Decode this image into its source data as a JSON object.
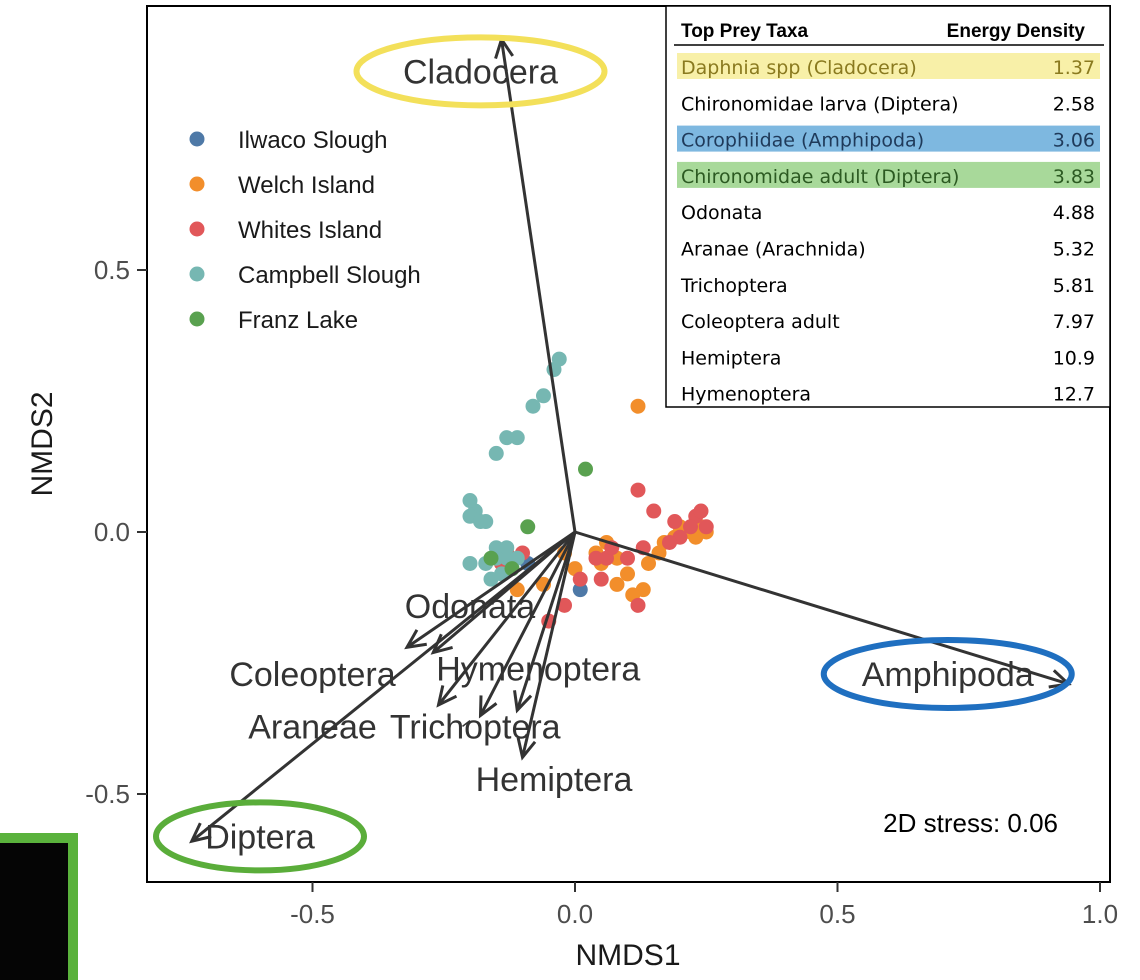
{
  "chart_data": {
    "type": "scatter",
    "xlabel": "NMDS1",
    "ylabel": "NMDS2",
    "xlim": [
      -0.8,
      1.0
    ],
    "ylim": [
      -0.66,
      0.97
    ],
    "x_ticks": [
      {
        "value": -0.5,
        "label": "-0.5"
      },
      {
        "value": 0.0,
        "label": "0.0"
      },
      {
        "value": 0.5,
        "label": "0.5"
      },
      {
        "value": 1.0,
        "label": "1.0"
      }
    ],
    "y_ticks": [
      {
        "value": -0.5,
        "label": "-0.5"
      },
      {
        "value": 0.0,
        "label": "0.0"
      },
      {
        "value": 0.5,
        "label": "0.5"
      }
    ],
    "grid": false,
    "legend_position": "top-left",
    "stress_text": "2D stress: 0.06",
    "series": [
      {
        "name": "Ilwaco Slough",
        "color": "#4e79a7",
        "points": [
          [
            0.01,
            -0.11
          ],
          [
            -0.09,
            -0.06
          ]
        ]
      },
      {
        "name": "Welch Island",
        "color": "#f28e2b",
        "points": [
          [
            0.12,
            0.24
          ],
          [
            0.06,
            -0.02
          ],
          [
            0.04,
            -0.04
          ],
          [
            0.08,
            -0.05
          ],
          [
            0.1,
            -0.08
          ],
          [
            0.14,
            -0.06
          ],
          [
            0.16,
            -0.04
          ],
          [
            0.19,
            -0.01
          ],
          [
            0.22,
            0.0
          ],
          [
            0.24,
            0.01
          ],
          [
            0.25,
            0.0
          ],
          [
            0.13,
            -0.11
          ],
          [
            0.11,
            -0.12
          ],
          [
            0.08,
            -0.1
          ],
          [
            0.05,
            -0.06
          ],
          [
            0.0,
            -0.07
          ],
          [
            -0.06,
            -0.1
          ],
          [
            -0.11,
            -0.11
          ],
          [
            -0.02,
            -0.04
          ],
          [
            0.2,
            0.01
          ],
          [
            0.23,
            -0.01
          ],
          [
            0.17,
            -0.02
          ]
        ]
      },
      {
        "name": "Whites Island",
        "color": "#e15759",
        "points": [
          [
            0.12,
            0.08
          ],
          [
            0.15,
            0.04
          ],
          [
            0.19,
            0.02
          ],
          [
            0.23,
            0.03
          ],
          [
            0.24,
            0.04
          ],
          [
            0.25,
            0.01
          ],
          [
            0.22,
            0.01
          ],
          [
            0.2,
            -0.01
          ],
          [
            0.18,
            -0.02
          ],
          [
            0.13,
            -0.03
          ],
          [
            0.1,
            -0.05
          ],
          [
            0.06,
            -0.05
          ],
          [
            0.05,
            -0.09
          ],
          [
            0.01,
            -0.09
          ],
          [
            -0.02,
            -0.14
          ],
          [
            -0.05,
            -0.17
          ],
          [
            -0.1,
            -0.04
          ],
          [
            -0.13,
            -0.04
          ],
          [
            -0.14,
            -0.06
          ],
          [
            0.07,
            -0.03
          ],
          [
            0.12,
            -0.14
          ],
          [
            0.04,
            -0.05
          ]
        ]
      },
      {
        "name": "Campbell Slough",
        "color": "#76b7b2",
        "points": [
          [
            -0.03,
            0.33
          ],
          [
            -0.04,
            0.31
          ],
          [
            -0.06,
            0.26
          ],
          [
            -0.08,
            0.24
          ],
          [
            -0.11,
            0.18
          ],
          [
            -0.13,
            0.18
          ],
          [
            -0.15,
            0.15
          ],
          [
            -0.19,
            0.04
          ],
          [
            -0.2,
            0.06
          ],
          [
            -0.2,
            0.03
          ],
          [
            -0.17,
            0.02
          ],
          [
            -0.18,
            0.02
          ],
          [
            -0.15,
            -0.03
          ],
          [
            -0.13,
            -0.05
          ],
          [
            -0.17,
            -0.06
          ],
          [
            -0.2,
            -0.06
          ],
          [
            -0.16,
            -0.09
          ],
          [
            -0.12,
            -0.07
          ],
          [
            -0.13,
            -0.03
          ],
          [
            -0.15,
            -0.05
          ],
          [
            -0.14,
            -0.08
          ],
          [
            -0.11,
            -0.05
          ]
        ]
      },
      {
        "name": "Franz Lake",
        "color": "#59a14f",
        "points": [
          [
            0.02,
            0.12
          ],
          [
            -0.09,
            0.01
          ],
          [
            -0.16,
            -0.05
          ],
          [
            -0.12,
            -0.07
          ]
        ]
      }
    ],
    "vectors": [
      {
        "label": "Cladocera",
        "x": -0.14,
        "y": 0.94,
        "label_x": -0.18,
        "label_y": 0.86,
        "circle_color": "#f3e05a"
      },
      {
        "label": "Amphipoda",
        "x": 0.94,
        "y": -0.29,
        "label_x": 0.71,
        "label_y": -0.29,
        "circle_color": "#1f6fc0"
      },
      {
        "label": "Diptera",
        "x": -0.73,
        "y": -0.59,
        "label_x": -0.6,
        "label_y": -0.6,
        "circle_color": "#5aad3a"
      },
      {
        "label": "Odonata",
        "x": -0.27,
        "y": -0.23,
        "label_x": -0.2,
        "label_y": -0.16,
        "circle_color": ""
      },
      {
        "label": "Coleoptera",
        "x": -0.32,
        "y": -0.22,
        "label_x": -0.5,
        "label_y": -0.29,
        "circle_color": ""
      },
      {
        "label": "Hymenoptera",
        "x": -0.11,
        "y": -0.34,
        "label_x": -0.07,
        "label_y": -0.28,
        "circle_color": ""
      },
      {
        "label": "Trichoptera",
        "x": -0.18,
        "y": -0.35,
        "label_x": -0.19,
        "label_y": -0.39,
        "circle_color": ""
      },
      {
        "label": "Araneae",
        "x": -0.26,
        "y": -0.33,
        "label_x": -0.5,
        "label_y": -0.39,
        "circle_color": ""
      },
      {
        "label": "Hemiptera",
        "x": -0.1,
        "y": -0.43,
        "label_x": -0.04,
        "label_y": -0.49,
        "circle_color": ""
      }
    ],
    "energy_table": {
      "headers": [
        "Top Prey Taxa",
        "Energy Density"
      ],
      "rows": [
        {
          "taxon": "Daphnia spp (Cladocera)",
          "value": "1.37",
          "highlight": "#f8f0a8",
          "text_color": "#8a7a1f"
        },
        {
          "taxon": "Chironomidae larva (Diptera)",
          "value": "2.58",
          "highlight": "",
          "text_color": "#000000"
        },
        {
          "taxon": "Corophiidae (Amphipoda)",
          "value": "3.06",
          "highlight": "#7eb8e0",
          "text_color": "#1f3a5a"
        },
        {
          "taxon": "Chironomidae adult (Diptera)",
          "value": "3.83",
          "highlight": "#a8d99a",
          "text_color": "#2c5a22"
        },
        {
          "taxon": "Odonata",
          "value": "4.88",
          "highlight": "",
          "text_color": "#000000"
        },
        {
          "taxon": "Aranae (Arachnida)",
          "value": "5.32",
          "highlight": "",
          "text_color": "#000000"
        },
        {
          "taxon": "Trichoptera",
          "value": "5.81",
          "highlight": "",
          "text_color": "#000000"
        },
        {
          "taxon": "Coleoptera adult",
          "value": "7.97",
          "highlight": "",
          "text_color": "#000000"
        },
        {
          "taxon": "Hemiptera",
          "value": "10.9",
          "highlight": "",
          "text_color": "#000000"
        },
        {
          "taxon": "Hymenoptera",
          "value": "12.7",
          "highlight": "",
          "text_color": "#000000"
        }
      ]
    }
  },
  "colors": {
    "vector": "#333333",
    "panel_border": "#000000",
    "inset_border": "#5ab23c",
    "inset_fill": "#050505"
  }
}
